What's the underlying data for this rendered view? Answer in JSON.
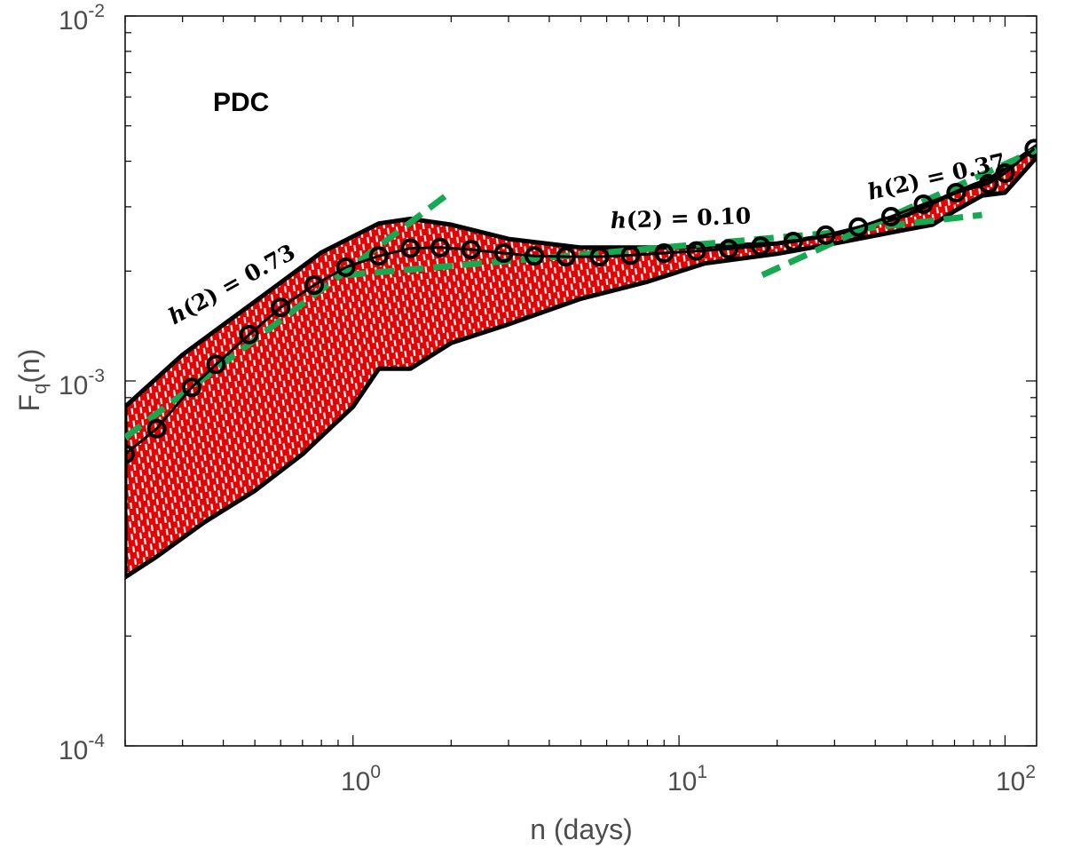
{
  "chart_data": {
    "type": "line",
    "panel_label": "PDC",
    "xlabel": "n (days)",
    "ylabel": {
      "main": "F",
      "sub": "q",
      "rest": "(n)"
    },
    "x_scale": "log",
    "y_scale": "log",
    "xlim": [
      0.2,
      125
    ],
    "ylim": [
      0.0001,
      0.01
    ],
    "x_ticks": [
      {
        "base": "10",
        "exp": "0",
        "value": 1
      },
      {
        "base": "10",
        "exp": "1",
        "value": 10
      },
      {
        "base": "10",
        "exp": "2",
        "value": 100
      }
    ],
    "y_ticks": [
      {
        "base": "10",
        "exp": "-4",
        "value": 0.0001
      },
      {
        "base": "10",
        "exp": "-3",
        "value": 0.001
      },
      {
        "base": "10",
        "exp": "-2",
        "value": 0.01
      }
    ],
    "grid": false,
    "colors": {
      "band": "#e60000",
      "band_stripes": "#ffffff",
      "fit": "#17a852",
      "main": "#000000"
    },
    "series": [
      {
        "values_x": [
          0.2,
          0.25,
          0.32,
          0.38,
          0.48,
          0.6,
          0.76,
          0.95,
          1.2,
          1.5,
          1.85,
          2.3,
          2.9,
          3.6,
          4.5,
          5.7,
          7.1,
          9,
          11.3,
          14.2,
          17.8,
          22.4,
          28.2,
          35.5,
          44.7,
          56.2,
          70.8,
          89,
          100,
          123
        ],
        "values_y": [
          0.00063,
          0.00074,
          0.00096,
          0.00111,
          0.00134,
          0.00159,
          0.00183,
          0.00205,
          0.0022,
          0.00231,
          0.00232,
          0.00229,
          0.00224,
          0.0022,
          0.00219,
          0.00219,
          0.00221,
          0.00224,
          0.00227,
          0.0023,
          0.00234,
          0.00241,
          0.00251,
          0.00264,
          0.00282,
          0.00305,
          0.00328,
          0.00347,
          0.00371,
          0.00433
        ],
        "markers": "circle"
      }
    ],
    "band": {
      "upper": {
        "x": [
          0.2,
          0.3,
          0.5,
          0.8,
          1.2,
          1.5,
          2,
          3,
          5,
          10,
          20,
          30,
          50,
          70,
          90,
          125
        ],
        "y": [
          0.00085,
          0.00118,
          0.00165,
          0.00225,
          0.0027,
          0.00278,
          0.00268,
          0.00245,
          0.00232,
          0.00232,
          0.00238,
          0.00252,
          0.00285,
          0.00328,
          0.00358,
          0.0044
        ]
      },
      "lower": {
        "x": [
          0.2,
          0.25,
          0.35,
          0.5,
          0.7,
          1,
          1.2,
          1.5,
          2,
          3,
          5,
          8,
          12,
          20,
          30,
          50,
          60,
          70,
          85,
          100,
          125
        ],
        "y": [
          0.00029,
          0.00033,
          0.00041,
          0.0005,
          0.00063,
          0.00085,
          0.00108,
          0.00108,
          0.00127,
          0.00143,
          0.00168,
          0.00187,
          0.0021,
          0.00223,
          0.00238,
          0.0026,
          0.00268,
          0.00292,
          0.00322,
          0.00328,
          0.0041
        ]
      }
    },
    "fits": [
      {
        "label": "h(2) = 0.73",
        "x": [
          0.2,
          2
        ],
        "y": [
          0.0007,
          0.0033
        ]
      },
      {
        "label": "h(2) = 0.10",
        "x": [
          0.95,
          30
        ],
        "y": [
          0.00195,
          0.00255
        ]
      },
      {
        "label": "h(2) = 0.37",
        "x": [
          18,
          125
        ],
        "y": [
          0.00195,
          0.0043
        ]
      },
      {
        "label": "",
        "x": [
          35,
          85
        ],
        "y": [
          0.0026,
          0.00285
        ]
      }
    ],
    "annotations": [
      "h(2) = 0.73",
      "h(2) = 0.10",
      "h(2) = 0.37"
    ]
  }
}
